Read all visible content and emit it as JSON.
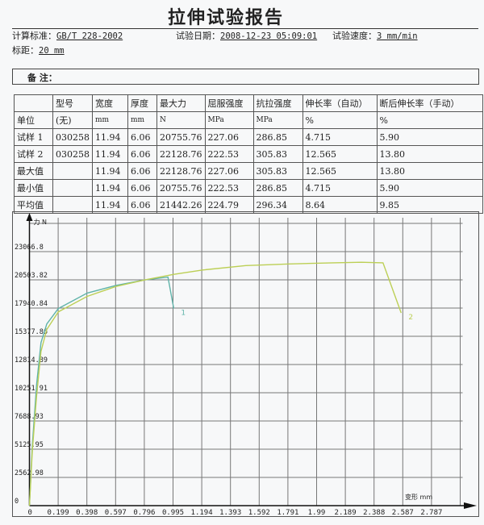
{
  "header": {
    "title": "拉伸试验报告",
    "standard_label": "计算标准：",
    "standard_value": "GB/T 228-2002",
    "date_label": "试验日期：",
    "date_value": "2008-12-23 05:09:01",
    "speed_label": "试验速度：",
    "speed_value": "3 mm/min",
    "gauge_label": "标距：",
    "gauge_value": "20 mm",
    "notes_label": "备  注："
  },
  "table": {
    "headers": [
      "",
      "型号",
      "宽度",
      "厚度",
      "最大力",
      "屈服强度",
      "抗拉强度",
      "伸长率（自动）",
      "断后伸长率（手动）"
    ],
    "rows": [
      [
        "单位",
        "(无)",
        "mm",
        "mm",
        "N",
        "MPa",
        "MPa",
        "%",
        "%"
      ],
      [
        "试样 1",
        "030258",
        "11.94",
        "6.06",
        "20755.76",
        "227.06",
        "286.85",
        "4.715",
        "5.90"
      ],
      [
        "试样 2",
        "030258",
        "11.94",
        "6.06",
        "22128.76",
        "222.53",
        "305.83",
        "12.565",
        "13.80"
      ],
      [
        "最大值",
        "",
        "11.94",
        "6.06",
        "22128.76",
        "227.06",
        "305.83",
        "12.565",
        "13.80"
      ],
      [
        "最小值",
        "",
        "11.94",
        "6.06",
        "20755.76",
        "222.53",
        "286.85",
        "4.715",
        "5.90"
      ],
      [
        "平均值",
        "",
        "11.94",
        "6.06",
        "21442.26",
        "224.79",
        "296.34",
        "8.64",
        "9.85"
      ]
    ]
  },
  "chart_data": {
    "type": "line",
    "xlabel": "变形 mm",
    "ylabel": "力 N",
    "x_ticks": [
      "0",
      "0.199",
      "0.398",
      "0.597",
      "0.796",
      "0.995",
      "1.194",
      "1.393",
      "1.592",
      "1.791",
      "1.99",
      "2.189",
      "2.388",
      "2.587",
      "2.787"
    ],
    "y_ticks": [
      "0",
      "2562.98",
      "5125.95",
      "7688.93",
      "10251.91",
      "12814.89",
      "15377.86",
      "17940.84",
      "20503.82",
      "23066.8"
    ],
    "xlim": [
      0,
      2.985
    ],
    "ylim": [
      0,
      25629.8
    ],
    "grid": true,
    "series": [
      {
        "name": "1",
        "color": "#5fb3a9",
        "x": [
          0,
          0.02,
          0.05,
          0.08,
          0.12,
          0.2,
          0.4,
          0.6,
          0.8,
          0.96,
          1.0
        ],
        "y": [
          0,
          5500,
          11000,
          14800,
          16500,
          17900,
          19300,
          20000,
          20500,
          20755,
          17900
        ]
      },
      {
        "name": "2",
        "color": "#bccf55",
        "x": [
          0,
          0.02,
          0.05,
          0.08,
          0.12,
          0.2,
          0.4,
          0.6,
          0.8,
          1.0,
          1.2,
          1.5,
          1.8,
          2.1,
          2.3,
          2.45,
          2.576
        ],
        "y": [
          0,
          5000,
          10000,
          14000,
          16000,
          17600,
          19000,
          19900,
          20500,
          21000,
          21400,
          21800,
          21950,
          22050,
          22100,
          22050,
          17500
        ]
      }
    ]
  }
}
